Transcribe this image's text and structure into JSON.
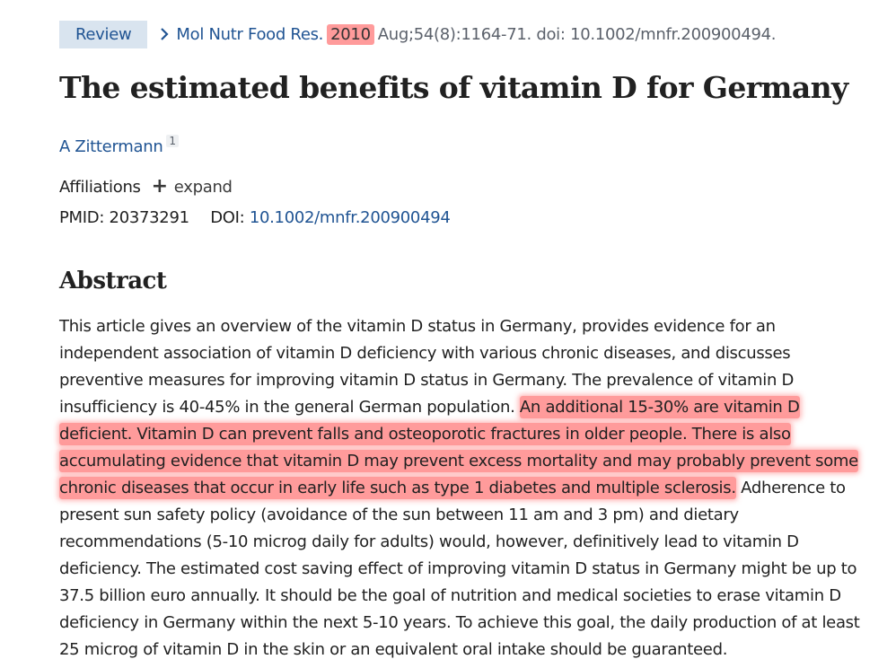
{
  "citation": {
    "badge": "Review",
    "journal": "Mol Nutr Food Res.",
    "year": "2010",
    "details": "Aug;54(8):1164-71. doi: 10.1002/mnfr.200900494."
  },
  "article": {
    "title": "The estimated benefits of vitamin D for Germany",
    "author": "A Zittermann",
    "author_affiliation_ref": "1",
    "affiliations_label": "Affiliations",
    "expand_label": "expand",
    "pmid_label": "PMID: 20373291",
    "doi_label": "DOI:",
    "doi_value": "10.1002/mnfr.200900494"
  },
  "abstract": {
    "heading": "Abstract",
    "text_before": "This article gives an overview of the vitamin D status in Germany, provides evidence for an independent association of vitamin D deficiency with various chronic diseases, and discusses preventive measures for improving vitamin D status in Germany. The prevalence of vitamin D insufficiency is 40-45% in the general German population. ",
    "text_highlighted": "An additional 15-30% are vitamin D deficient. Vitamin D can prevent falls and osteoporotic fractures in older people. There is also accumulating evidence that vitamin D may prevent excess mortality and may probably prevent some chronic diseases that occur in early life such as type 1 diabetes and multiple sclerosis.",
    "text_after": " Adherence to present sun safety policy (avoidance of the sun between 11 am and 3 pm) and dietary recommendations (5-10 microg daily for adults) would, however, definitively lead to vitamin D deficiency. The estimated cost saving effect of improving vitamin D status in Germany might be up to 37.5 billion euro annually. It should be the goal of nutrition and medical societies to erase vitamin D deficiency in Germany within the next 5-10 years. To achieve this goal, the daily production of at least 25 microg of vitamin D in the skin or an equivalent oral intake should be guaranteed."
  },
  "colors": {
    "link": "#205493",
    "highlight": "#ff9b9b",
    "badge_bg": "#d9e4ef"
  },
  "icons": {
    "breadcrumb": "chevron-right-icon",
    "expand": "plus-icon"
  }
}
